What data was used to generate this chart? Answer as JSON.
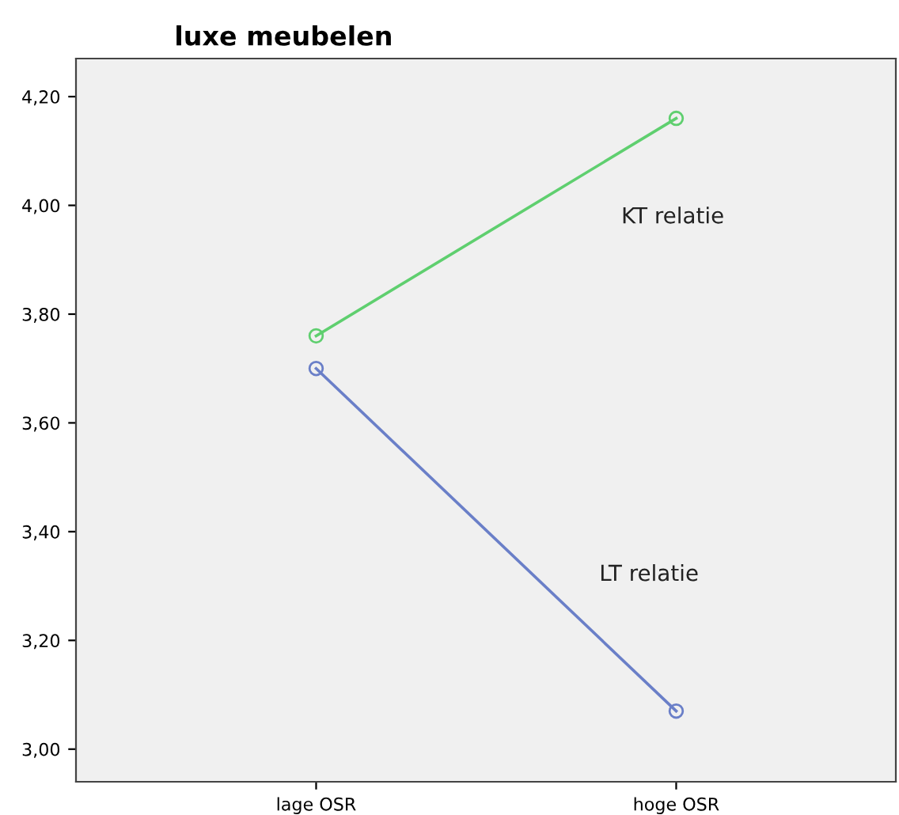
{
  "chart_data": {
    "type": "line",
    "title": "luxe meubelen",
    "categories": [
      "lage OSR",
      "hoge OSR"
    ],
    "series": [
      {
        "name": "KT relatie",
        "color": "#5fcf6f",
        "values": [
          3.76,
          4.16
        ]
      },
      {
        "name": "LT relatie",
        "color": "#6a7fc8",
        "values": [
          3.7,
          3.07
        ]
      }
    ],
    "ylim": [
      2.94,
      4.27
    ],
    "yticks": [
      {
        "value": 3.0,
        "label": "3,00"
      },
      {
        "value": 3.2,
        "label": "3,20"
      },
      {
        "value": 3.4,
        "label": "3,40"
      },
      {
        "value": 3.6,
        "label": "3,60"
      },
      {
        "value": 3.8,
        "label": "3,80"
      },
      {
        "value": 4.0,
        "label": "4,00"
      },
      {
        "value": 4.2,
        "label": "4,20"
      }
    ],
    "marker": "circle",
    "line_style": "solid",
    "grid": false,
    "legend": false
  }
}
